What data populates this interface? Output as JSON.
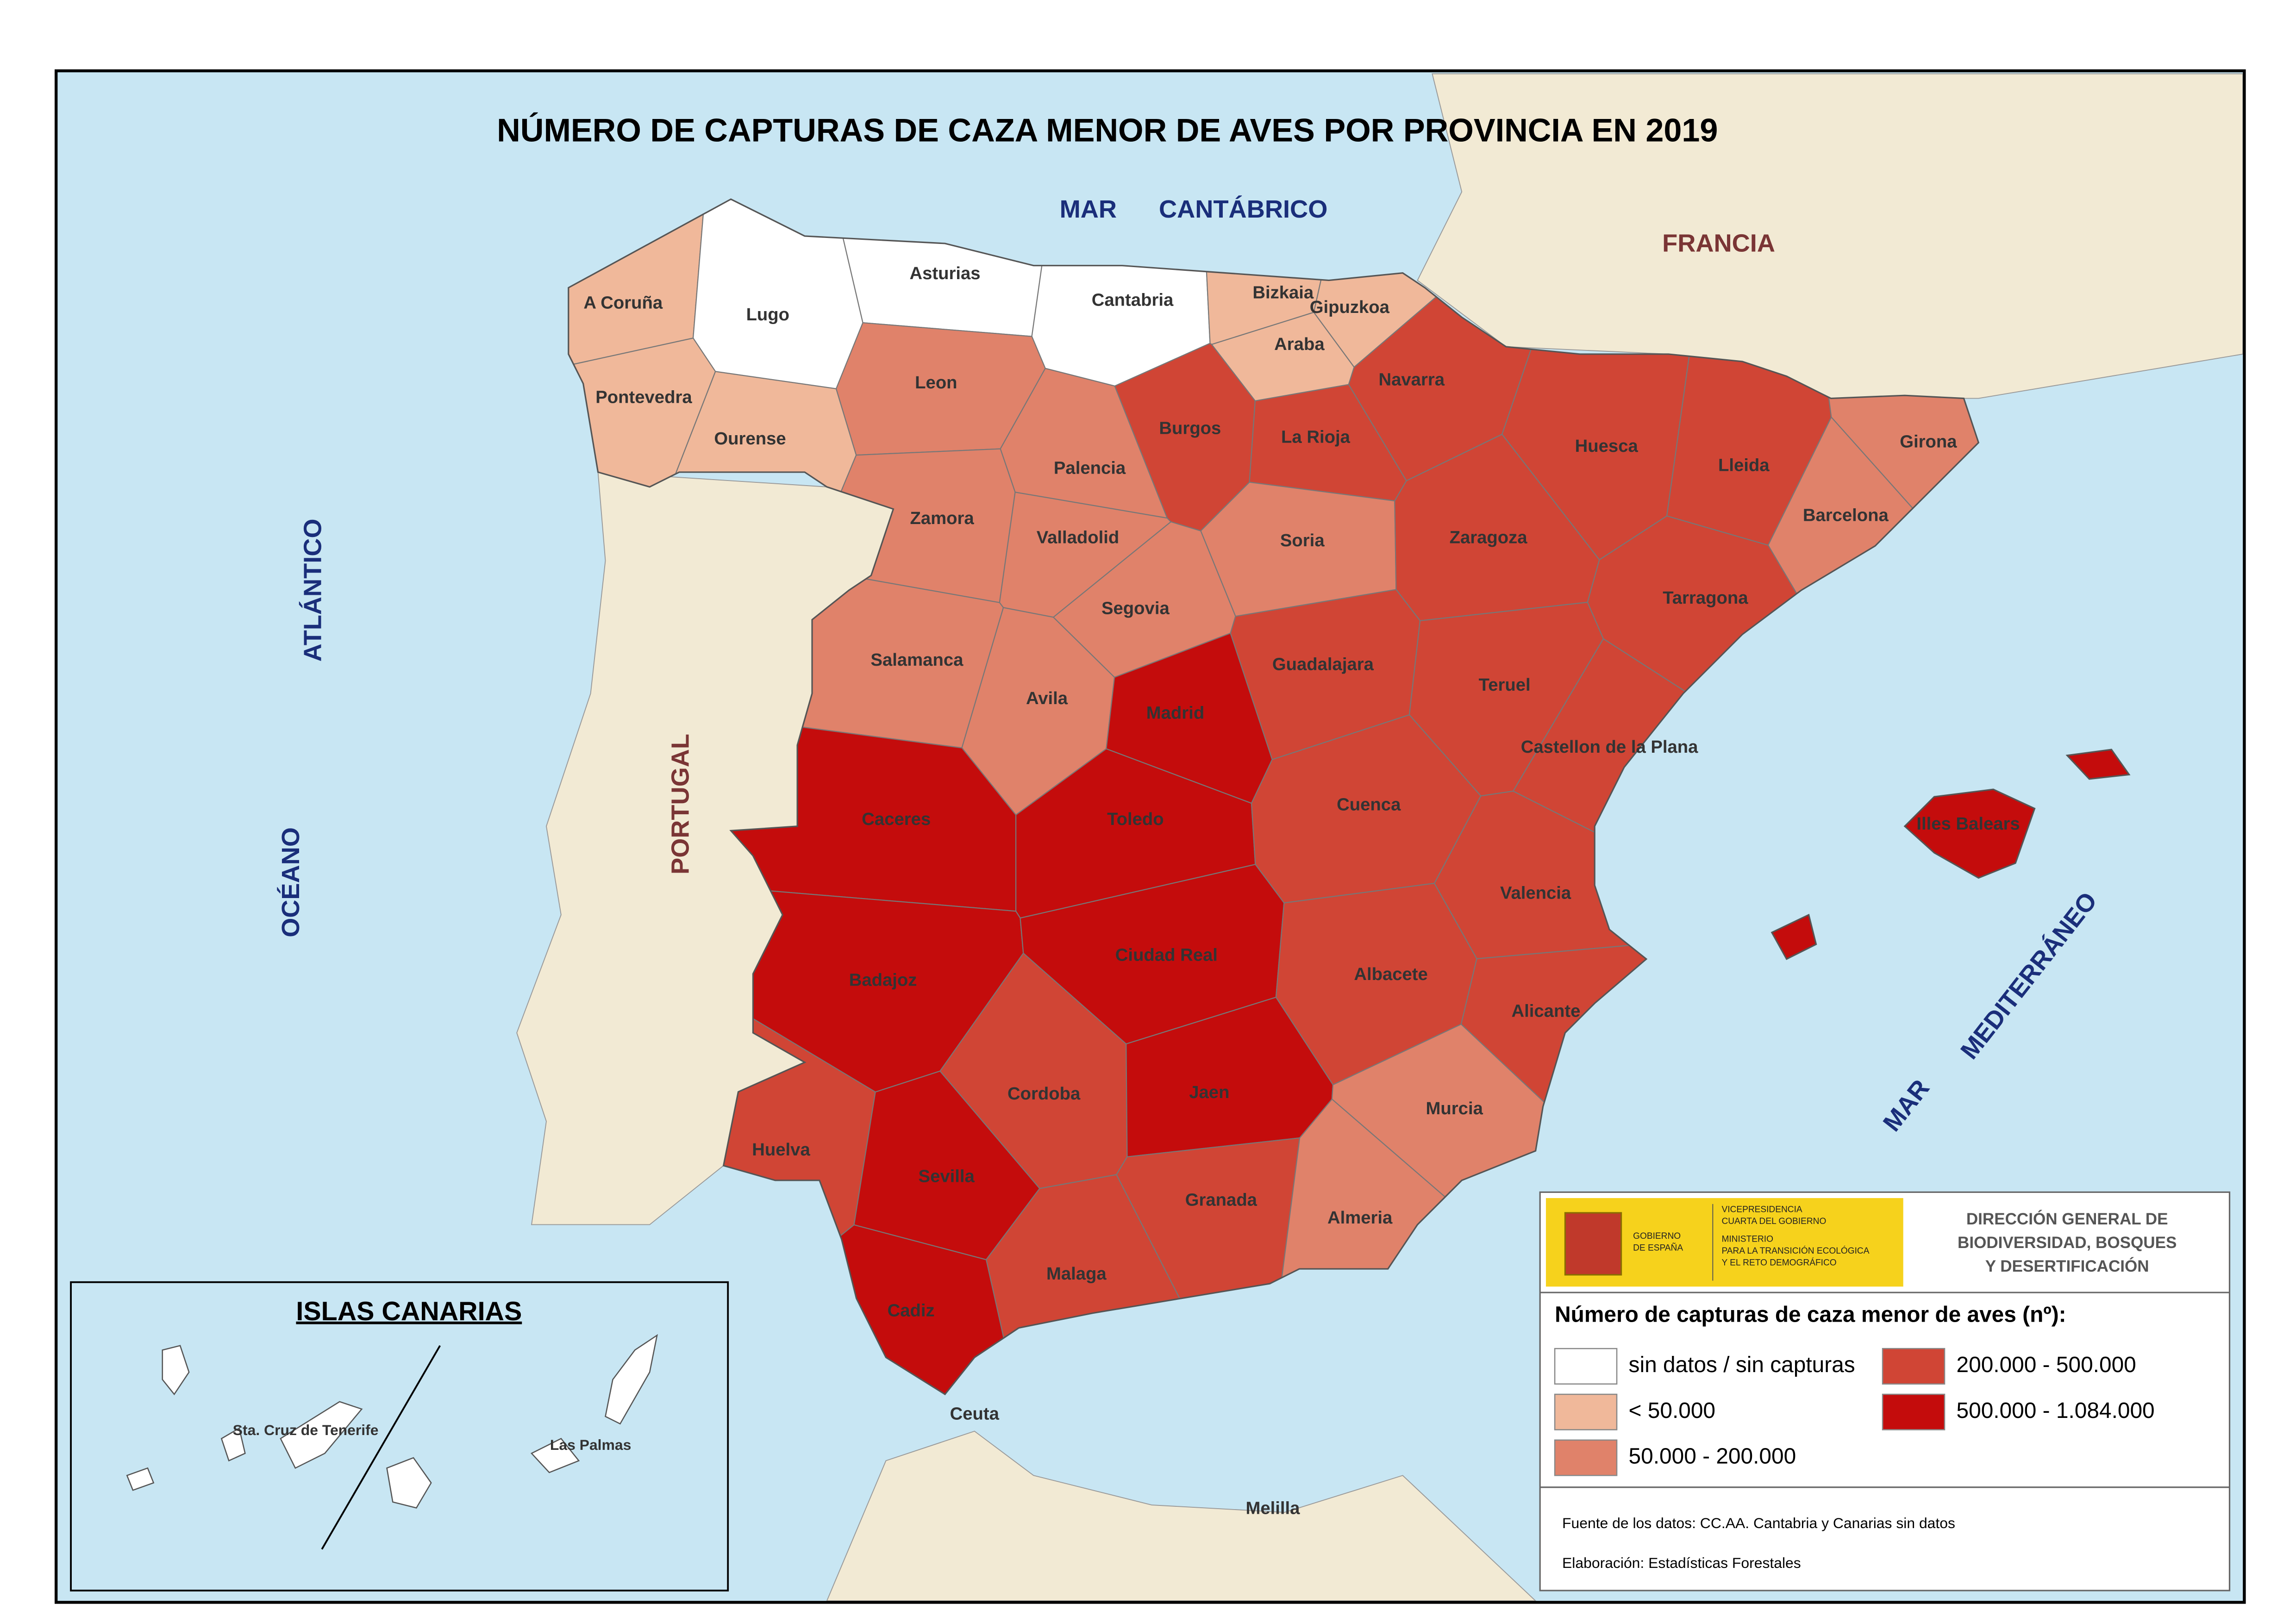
{
  "title": "NÚMERO DE CAPTURAS DE CAZA MENOR DE AVES POR PROVINCIA EN 2019",
  "seas": {
    "cantabrico": [
      "MAR",
      "CANTÁBRICO"
    ],
    "atlantico": [
      "OCÉANO",
      "ATLÁNTICO"
    ],
    "mediterraneo": [
      "MAR",
      "MEDITERRÁNEO"
    ]
  },
  "countries": {
    "francia": "FRANCIA",
    "portugal": "PORTUGAL"
  },
  "provinces": [
    {
      "name": "A Coruña",
      "color": "#f0b89a"
    },
    {
      "name": "Lugo",
      "color": "#ffffff"
    },
    {
      "name": "Asturias",
      "color": "#ffffff"
    },
    {
      "name": "Cantabria",
      "color": "#ffffff"
    },
    {
      "name": "Bizkaia",
      "color": "#f0b89a"
    },
    {
      "name": "Gipuzkoa",
      "color": "#f0b89a"
    },
    {
      "name": "Araba",
      "color": "#f0b89a"
    },
    {
      "name": "Navarra",
      "color": "#d04535"
    },
    {
      "name": "Pontevedra",
      "color": "#f0b89a"
    },
    {
      "name": "Ourense",
      "color": "#f0b89a"
    },
    {
      "name": "Leon",
      "color": "#e0826a"
    },
    {
      "name": "Palencia",
      "color": "#e0826a"
    },
    {
      "name": "Burgos",
      "color": "#d04535"
    },
    {
      "name": "La Rioja",
      "color": "#d04535"
    },
    {
      "name": "Huesca",
      "color": "#d04535"
    },
    {
      "name": "Lleida",
      "color": "#d04535"
    },
    {
      "name": "Girona",
      "color": "#e0826a"
    },
    {
      "name": "Barcelona",
      "color": "#e0826a"
    },
    {
      "name": "Zamora",
      "color": "#e0826a"
    },
    {
      "name": "Valladolid",
      "color": "#e0826a"
    },
    {
      "name": "Soria",
      "color": "#e0826a"
    },
    {
      "name": "Zaragoza",
      "color": "#d04535"
    },
    {
      "name": "Tarragona",
      "color": "#d04535"
    },
    {
      "name": "Segovia",
      "color": "#e0826a"
    },
    {
      "name": "Salamanca",
      "color": "#e0826a"
    },
    {
      "name": "Avila",
      "color": "#e0826a"
    },
    {
      "name": "Guadalajara",
      "color": "#d04535"
    },
    {
      "name": "Teruel",
      "color": "#d04535"
    },
    {
      "name": "Madrid",
      "color": "#c40c0c"
    },
    {
      "name": "Castellon de la Plana",
      "color": "#d04535"
    },
    {
      "name": "Caceres",
      "color": "#c40c0c"
    },
    {
      "name": "Toledo",
      "color": "#c40c0c"
    },
    {
      "name": "Cuenca",
      "color": "#d04535"
    },
    {
      "name": "Illes Balears",
      "color": "#c40c0c"
    },
    {
      "name": "Valencia",
      "color": "#d04535"
    },
    {
      "name": "Badajoz",
      "color": "#c40c0c"
    },
    {
      "name": "Ciudad Real",
      "color": "#c40c0c"
    },
    {
      "name": "Albacete",
      "color": "#d04535"
    },
    {
      "name": "Alicante",
      "color": "#d04535"
    },
    {
      "name": "Cordoba",
      "color": "#d04535"
    },
    {
      "name": "Jaen",
      "color": "#c40c0c"
    },
    {
      "name": "Murcia",
      "color": "#e0826a"
    },
    {
      "name": "Huelva",
      "color": "#d04535"
    },
    {
      "name": "Sevilla",
      "color": "#c40c0c"
    },
    {
      "name": "Granada",
      "color": "#d04535"
    },
    {
      "name": "Almeria",
      "color": "#e0826a"
    },
    {
      "name": "Malaga",
      "color": "#d04535"
    },
    {
      "name": "Cadiz",
      "color": "#c40c0c"
    }
  ],
  "other_places": [
    "Ceuta",
    "Melilla"
  ],
  "canarias": {
    "title": "ISLAS CANARIAS",
    "provinces": [
      "Sta. Cruz de Tenerife",
      "Las Palmas"
    ]
  },
  "logo": {
    "gobierno": [
      "GOBIERNO",
      "DE ESPAÑA"
    ],
    "vicepresidencia": [
      "VICEPRESIDENCIA",
      "CUARTA DEL GOBIERNO"
    ],
    "ministerio": [
      "MINISTERIO",
      "PARA LA TRANSICIÓN ECOLÓGICA",
      "Y EL RETO DEMOGRÁFICO"
    ]
  },
  "agency": [
    "DIRECCIÓN GENERAL DE",
    "BIODIVERSIDAD, BOSQUES",
    "Y DESERTIFICACIÓN"
  ],
  "legend": {
    "title": "Número de capturas de caza menor de aves (nº):",
    "items": [
      {
        "label": "sin datos / sin capturas",
        "color": "#ffffff"
      },
      {
        "label": "< 50.000",
        "color": "#f0b89a"
      },
      {
        "label": "50.000 - 200.000",
        "color": "#e0826a"
      },
      {
        "label": "200.000 - 500.000",
        "color": "#d04535"
      },
      {
        "label": "500.000 - 1.084.000",
        "color": "#c40c0c"
      }
    ]
  },
  "source": "Fuente de los datos: CC.AA. Cantabria y Canarias sin datos",
  "credit": "Elaboración: Estadísticas Forestales"
}
